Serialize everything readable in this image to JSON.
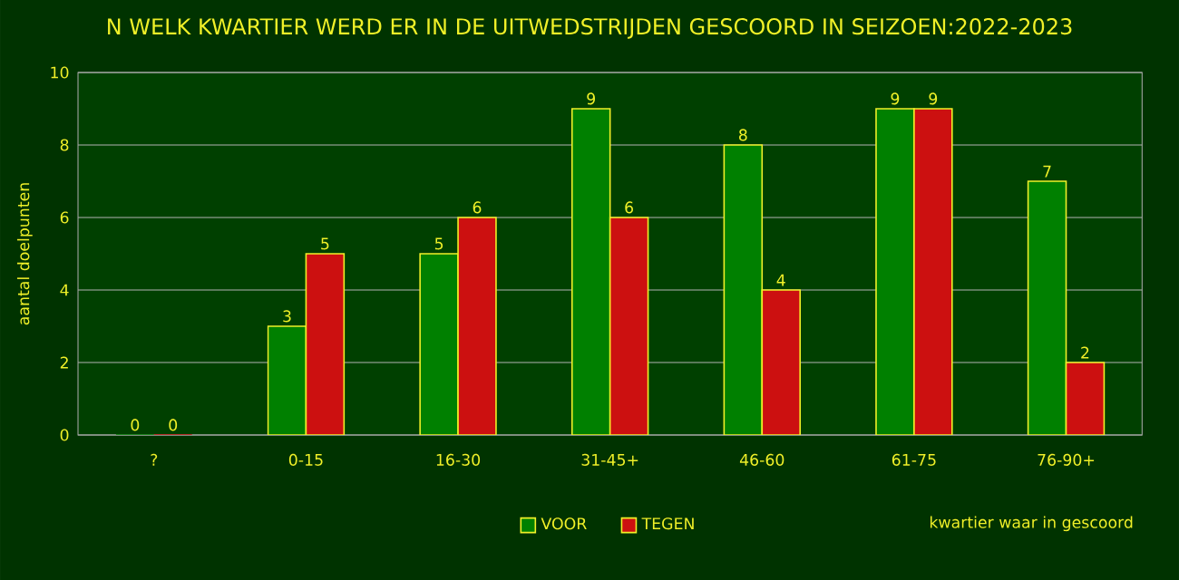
{
  "chart_data": {
    "type": "bar",
    "title": "N WELK KWARTIER WERD ER IN DE UITWEDSTRIJDEN GESCOORD IN SEIZOEN:2022-2023",
    "xlabel": "kwartier waar in gescoord",
    "ylabel": "aantal doelpunten",
    "categories": [
      "?",
      "0-15",
      "16-30",
      "31-45+",
      "46-60",
      "61-75",
      "76-90+"
    ],
    "series": [
      {
        "name": "VOOR",
        "color": "#008000",
        "values": [
          0,
          3,
          5,
          9,
          8,
          9,
          7
        ]
      },
      {
        "name": "TEGEN",
        "color": "#cc1010",
        "values": [
          0,
          5,
          6,
          6,
          4,
          9,
          2
        ]
      }
    ],
    "ylim": [
      0,
      10
    ],
    "yticks": [
      0,
      2,
      4,
      6,
      8,
      10
    ],
    "grid": "y",
    "legend": "bottom",
    "data_labels": true
  }
}
